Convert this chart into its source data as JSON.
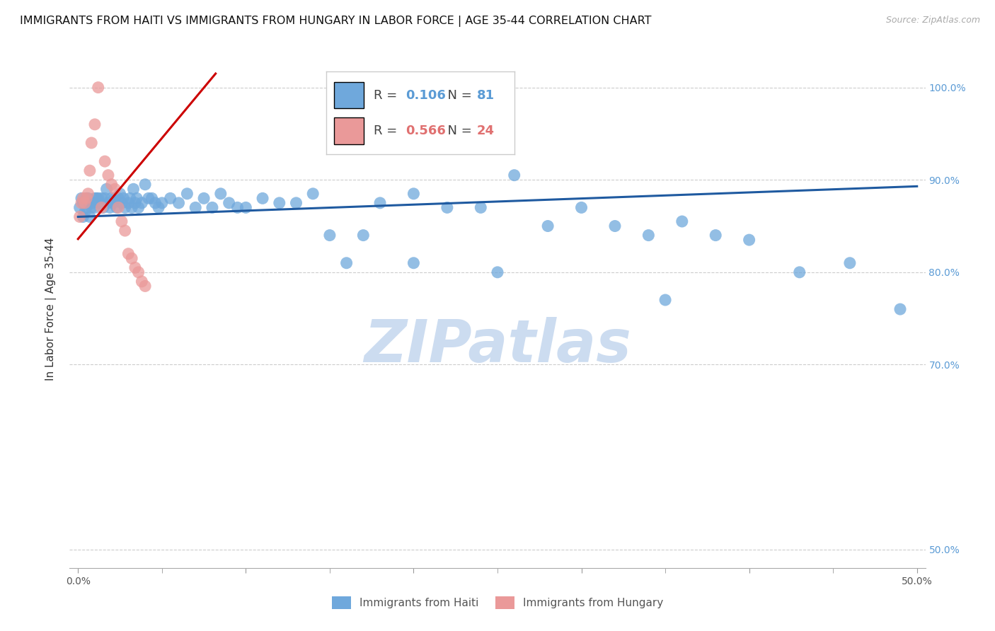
{
  "title": "IMMIGRANTS FROM HAITI VS IMMIGRANTS FROM HUNGARY IN LABOR FORCE | AGE 35-44 CORRELATION CHART",
  "source": "Source: ZipAtlas.com",
  "ylabel": "In Labor Force | Age 35-44",
  "right_ytick_labels": [
    "100.0%",
    "90.0%",
    "80.0%",
    "70.0%",
    "50.0%"
  ],
  "right_ytick_values": [
    1.0,
    0.9,
    0.8,
    0.7,
    0.5
  ],
  "xlim": [
    -0.005,
    0.505
  ],
  "ylim": [
    0.48,
    1.04
  ],
  "xtick_values": [
    0.0,
    0.1,
    0.2,
    0.3,
    0.4,
    0.5
  ],
  "xtick_labels": [
    "0.0%",
    "",
    "",
    "",
    "",
    "50.0%"
  ],
  "xtick_minor_values": [
    0.05,
    0.15,
    0.25,
    0.35,
    0.45
  ],
  "legend_haiti_r": "0.106",
  "legend_haiti_n": "81",
  "legend_hungary_r": "0.566",
  "legend_hungary_n": "24",
  "haiti_color": "#6fa8dc",
  "hungary_color": "#ea9999",
  "haiti_line_color": "#1f5aa0",
  "hungary_line_color": "#cc0000",
  "watermark": "ZIPatlas",
  "watermark_color": "#ccdcf0",
  "haiti_x": [
    0.001,
    0.002,
    0.003,
    0.003,
    0.004,
    0.005,
    0.005,
    0.006,
    0.007,
    0.007,
    0.008,
    0.009,
    0.01,
    0.01,
    0.011,
    0.012,
    0.013,
    0.014,
    0.015,
    0.016,
    0.017,
    0.018,
    0.019,
    0.02,
    0.021,
    0.022,
    0.023,
    0.024,
    0.025,
    0.026,
    0.027,
    0.028,
    0.03,
    0.031,
    0.032,
    0.033,
    0.034,
    0.035,
    0.036,
    0.038,
    0.04,
    0.042,
    0.044,
    0.046,
    0.048,
    0.05,
    0.055,
    0.06,
    0.065,
    0.07,
    0.075,
    0.08,
    0.085,
    0.09,
    0.095,
    0.1,
    0.11,
    0.12,
    0.13,
    0.14,
    0.15,
    0.16,
    0.17,
    0.18,
    0.2,
    0.22,
    0.24,
    0.26,
    0.28,
    0.3,
    0.32,
    0.34,
    0.36,
    0.38,
    0.4,
    0.43,
    0.46,
    0.49,
    0.2,
    0.25,
    0.35
  ],
  "haiti_y": [
    0.87,
    0.88,
    0.86,
    0.875,
    0.865,
    0.88,
    0.87,
    0.88,
    0.875,
    0.86,
    0.87,
    0.875,
    0.88,
    0.87,
    0.88,
    0.88,
    0.875,
    0.88,
    0.87,
    0.88,
    0.89,
    0.875,
    0.87,
    0.88,
    0.875,
    0.88,
    0.87,
    0.88,
    0.885,
    0.875,
    0.88,
    0.87,
    0.875,
    0.88,
    0.87,
    0.89,
    0.875,
    0.88,
    0.87,
    0.875,
    0.895,
    0.88,
    0.88,
    0.875,
    0.87,
    0.875,
    0.88,
    0.875,
    0.885,
    0.87,
    0.88,
    0.87,
    0.885,
    0.875,
    0.87,
    0.87,
    0.88,
    0.875,
    0.875,
    0.885,
    0.84,
    0.81,
    0.84,
    0.875,
    0.885,
    0.87,
    0.87,
    0.905,
    0.85,
    0.87,
    0.85,
    0.84,
    0.855,
    0.84,
    0.835,
    0.8,
    0.81,
    0.76,
    0.81,
    0.8,
    0.77
  ],
  "hungary_x": [
    0.001,
    0.002,
    0.003,
    0.004,
    0.005,
    0.006,
    0.007,
    0.008,
    0.01,
    0.012,
    0.014,
    0.016,
    0.018,
    0.02,
    0.022,
    0.024,
    0.026,
    0.028,
    0.03,
    0.032,
    0.034,
    0.036,
    0.038,
    0.04
  ],
  "hungary_y": [
    0.86,
    0.875,
    0.88,
    0.875,
    0.88,
    0.885,
    0.91,
    0.94,
    0.96,
    1.0,
    0.87,
    0.92,
    0.905,
    0.895,
    0.89,
    0.87,
    0.855,
    0.845,
    0.82,
    0.815,
    0.805,
    0.8,
    0.79,
    0.785
  ],
  "haiti_trend_x": [
    0.0,
    0.5
  ],
  "haiti_trend_y": [
    0.86,
    0.893
  ],
  "hungary_trend_x": [
    0.0,
    0.082
  ],
  "hungary_trend_y": [
    0.836,
    1.015
  ],
  "grid_color": "#cccccc",
  "bg_color": "#ffffff",
  "title_fontsize": 11.5,
  "axis_label_fontsize": 11,
  "tick_fontsize": 10,
  "legend_fontsize": 13
}
